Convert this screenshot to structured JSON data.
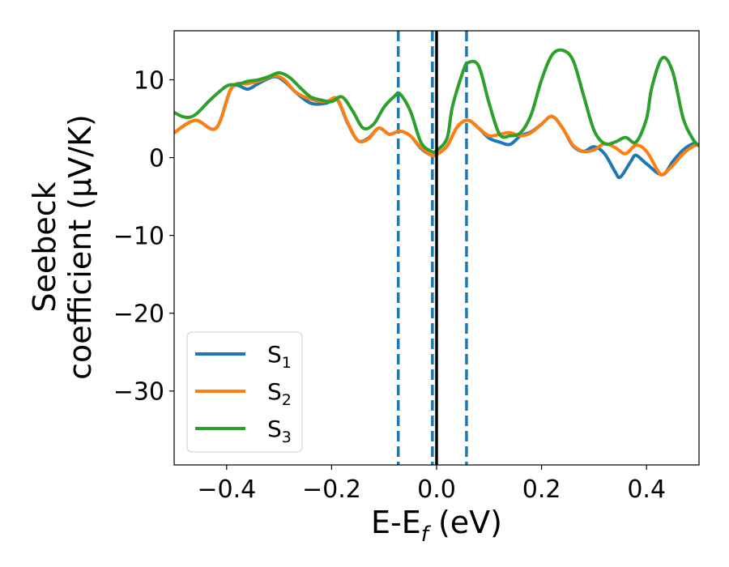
{
  "chart_data": {
    "type": "line",
    "title": "",
    "xlabel": "E-E",
    "xlabel_sub": "f",
    "xlabel_unit": " (eV)",
    "ylabel_line1": "Seebeck",
    "ylabel_line2": "coefficient  (μV/K)",
    "xlim": [
      -0.5,
      0.5
    ],
    "ylim": [
      -39.5,
      16.3
    ],
    "xticks": [
      -0.4,
      -0.2,
      0.0,
      0.2,
      0.4
    ],
    "xtick_labels": [
      "−0.4",
      "−0.2",
      "0.0",
      "0.2",
      "0.4"
    ],
    "yticks": [
      10,
      0,
      -10,
      -20,
      -30
    ],
    "ytick_labels": [
      "10",
      "0",
      "−10",
      "−20",
      "−30"
    ],
    "grid": false,
    "legend_position": "lower-left",
    "vlines_solid": [
      {
        "x": 0.0,
        "color": "#000000"
      }
    ],
    "vlines_dashed": [
      {
        "x": -0.073,
        "color": "#1f77b4"
      },
      {
        "x": -0.008,
        "color": "#1f77b4"
      },
      {
        "x": 0.057,
        "color": "#1f77b4"
      }
    ],
    "series": [
      {
        "name": "S",
        "name_sub": "1",
        "color": "#1f77b4",
        "x": [
          -0.5,
          -0.46,
          -0.42,
          -0.39,
          -0.36,
          -0.34,
          -0.31,
          -0.29,
          -0.27,
          -0.24,
          -0.21,
          -0.19,
          -0.17,
          -0.15,
          -0.13,
          -0.11,
          -0.09,
          -0.07,
          -0.05,
          -0.03,
          -0.01,
          0.0,
          0.02,
          0.04,
          0.06,
          0.08,
          0.1,
          0.12,
          0.14,
          0.16,
          0.18,
          0.2,
          0.22,
          0.24,
          0.26,
          0.28,
          0.3,
          0.32,
          0.34,
          0.35,
          0.37,
          0.38,
          0.4,
          0.43,
          0.45,
          0.47,
          0.49,
          0.5
        ],
        "y": [
          3.2,
          4.8,
          3.8,
          9.0,
          8.8,
          9.5,
          10.4,
          9.8,
          8.5,
          7.0,
          7.0,
          7.5,
          4.5,
          2.2,
          2.5,
          3.8,
          3.0,
          3.4,
          2.8,
          1.2,
          0.3,
          0.4,
          1.5,
          4.0,
          4.8,
          3.8,
          2.5,
          2.0,
          1.7,
          2.8,
          3.3,
          4.3,
          5.3,
          3.8,
          1.5,
          0.8,
          1.4,
          0.5,
          -1.8,
          -2.5,
          -0.5,
          0.3,
          -0.8,
          -2.2,
          -0.5,
          1.0,
          1.8,
          1.5
        ]
      },
      {
        "name": "S",
        "name_sub": "2",
        "color": "#ff7f0e",
        "x": [
          -0.5,
          -0.46,
          -0.42,
          -0.39,
          -0.36,
          -0.34,
          -0.31,
          -0.29,
          -0.27,
          -0.24,
          -0.21,
          -0.19,
          -0.17,
          -0.15,
          -0.13,
          -0.11,
          -0.09,
          -0.07,
          -0.05,
          -0.03,
          -0.01,
          0.0,
          0.02,
          0.04,
          0.06,
          0.08,
          0.1,
          0.12,
          0.14,
          0.16,
          0.18,
          0.2,
          0.22,
          0.24,
          0.26,
          0.28,
          0.3,
          0.32,
          0.34,
          0.36,
          0.38,
          0.4,
          0.42,
          0.43,
          0.45,
          0.47,
          0.49,
          0.5
        ],
        "y": [
          3.2,
          4.8,
          3.8,
          9.0,
          9.5,
          9.8,
          10.5,
          10.0,
          8.5,
          7.5,
          7.2,
          7.6,
          4.6,
          2.2,
          2.4,
          3.8,
          3.0,
          3.4,
          2.8,
          1.3,
          0.3,
          0.4,
          1.5,
          4.0,
          4.8,
          3.8,
          2.8,
          3.0,
          3.2,
          2.8,
          3.2,
          4.3,
          5.3,
          3.8,
          1.6,
          0.8,
          1.0,
          1.8,
          1.3,
          0.5,
          1.6,
          0.8,
          -1.5,
          -2.2,
          -1.0,
          0.5,
          1.5,
          1.6
        ]
      },
      {
        "name": "S",
        "name_sub": "3",
        "color": "#2ca02c",
        "x": [
          -0.5,
          -0.48,
          -0.46,
          -0.43,
          -0.4,
          -0.38,
          -0.36,
          -0.34,
          -0.32,
          -0.3,
          -0.28,
          -0.26,
          -0.24,
          -0.22,
          -0.2,
          -0.18,
          -0.16,
          -0.14,
          -0.12,
          -0.1,
          -0.08,
          -0.07,
          -0.05,
          -0.03,
          -0.01,
          0.0,
          0.02,
          0.03,
          0.05,
          0.06,
          0.08,
          0.1,
          0.12,
          0.14,
          0.16,
          0.18,
          0.2,
          0.22,
          0.24,
          0.26,
          0.28,
          0.3,
          0.32,
          0.34,
          0.36,
          0.38,
          0.4,
          0.41,
          0.43,
          0.45,
          0.47,
          0.49,
          0.5
        ],
        "y": [
          5.8,
          5.2,
          5.5,
          7.5,
          9.2,
          9.4,
          9.8,
          10.0,
          10.4,
          10.9,
          10.3,
          9.0,
          7.8,
          7.4,
          7.2,
          7.8,
          6.0,
          3.8,
          4.3,
          6.5,
          7.9,
          8.2,
          6.0,
          2.0,
          0.8,
          0.9,
          2.5,
          6.5,
          11.0,
          12.2,
          11.8,
          7.0,
          3.0,
          2.8,
          3.2,
          5.5,
          10.0,
          13.2,
          13.8,
          12.5,
          8.0,
          3.5,
          1.8,
          2.0,
          2.6,
          2.0,
          5.0,
          9.0,
          12.8,
          11.0,
          5.0,
          2.2,
          1.6
        ]
      }
    ]
  }
}
